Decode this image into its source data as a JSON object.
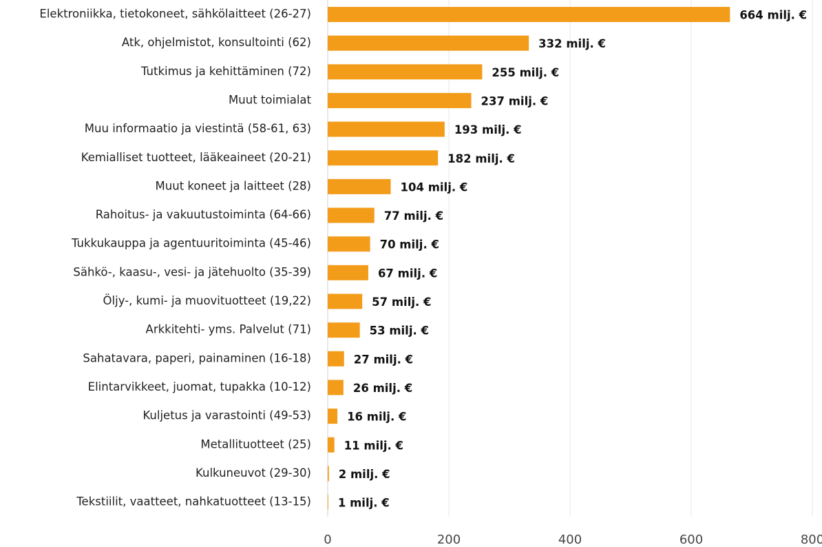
{
  "chart_data": {
    "type": "barh",
    "categories": [
      "Elektroniikka, tietokoneet, sähkölaitteet (26-27)",
      "Atk, ohjelmistot, konsultointi (62)",
      "Tutkimus ja kehittäminen (72)",
      "Muut toimialat",
      "Muu informaatio ja viestintä (58-61, 63)",
      "Kemialliset tuotteet, lääkeaineet (20-21)",
      "Muut koneet ja laitteet (28)",
      "Rahoitus- ja vakuutustoiminta (64-66)",
      "Tukkukauppa ja agentuuritoiminta (45-46)",
      "Sähkö-, kaasu-, vesi- ja jätehuolto (35-39)",
      "Öljy-, kumi- ja muovituotteet (19,22)",
      "Arkkitehti- yms. Palvelut (71)",
      "Sahatavara, paperi, painaminen (16-18)",
      "Elintarvikkeet, juomat, tupakka (10-12)",
      "Kuljetus ja varastointi (49-53)",
      "Metallituotteet (25)",
      "Kulkuneuvot (29-30)",
      "Tekstiilit, vaatteet, nahkatuotteet (13-15)"
    ],
    "values": [
      664,
      332,
      255,
      237,
      193,
      182,
      104,
      77,
      70,
      67,
      57,
      53,
      27,
      26,
      16,
      11,
      2,
      1
    ],
    "value_labels": [
      "664 milj. €",
      "332 milj. €",
      "255 milj. €",
      "237 milj. €",
      "193 milj. €",
      "182 milj. €",
      "104 milj. €",
      "77 milj. €",
      "70 milj. €",
      "67 milj. €",
      "57 milj. €",
      "53 milj. €",
      "27 milj. €",
      "26 milj. €",
      "16 milj. €",
      "11 milj. €",
      "2 milj. €",
      "1 milj. €"
    ],
    "color": "#f39c1a",
    "xlim": [
      0,
      800
    ],
    "xticks": [
      0,
      200,
      400,
      600,
      800
    ],
    "grid": true
  }
}
